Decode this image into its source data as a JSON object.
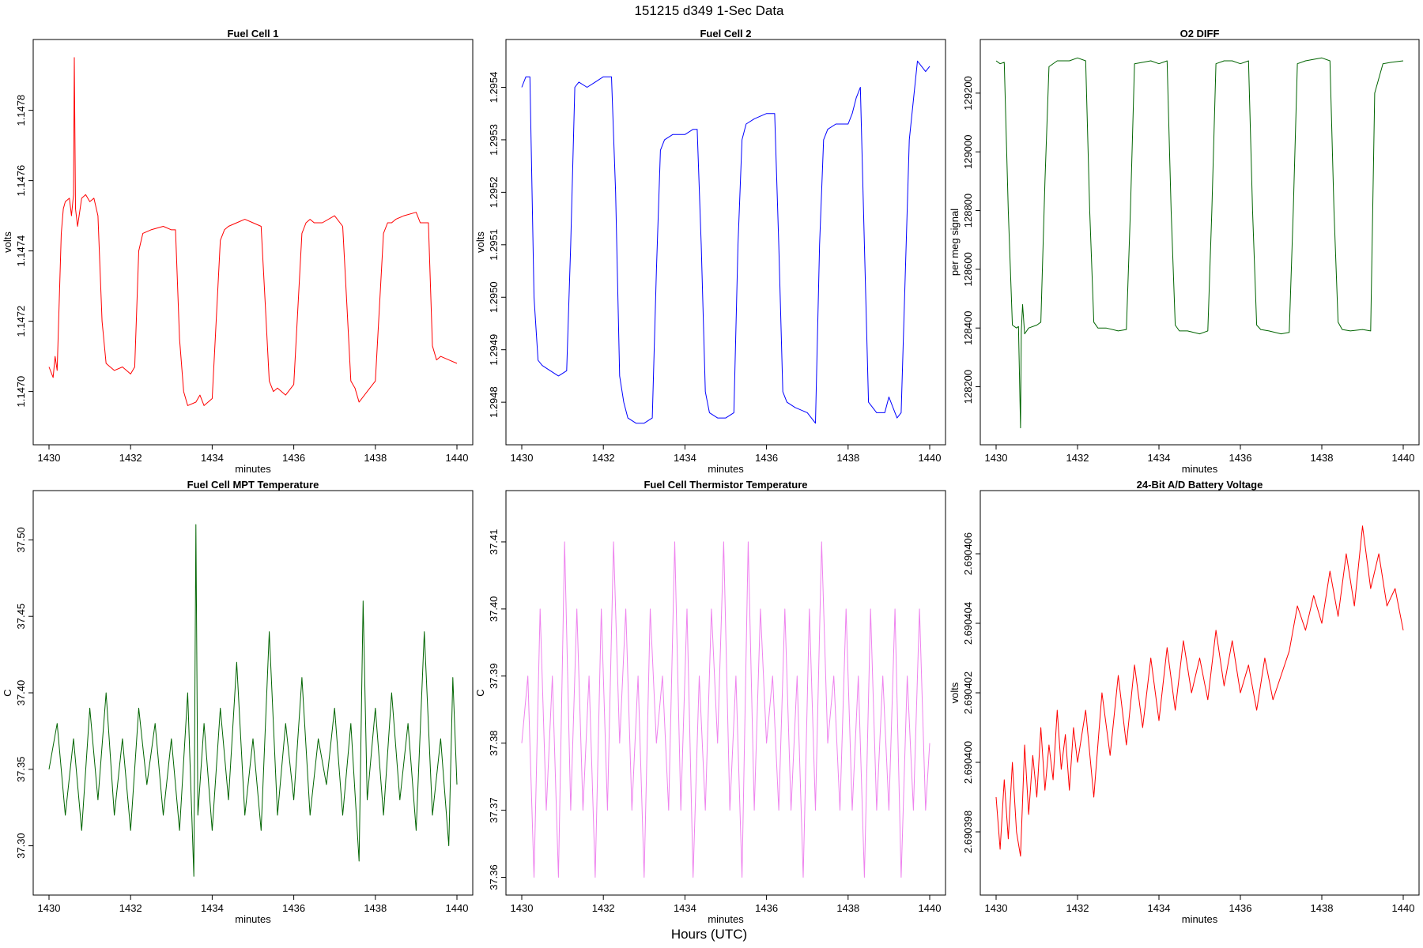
{
  "figure": {
    "title": "151215   d349   1-Sec Data",
    "footer": "Hours (UTC)"
  },
  "chart_data": [
    {
      "type": "line",
      "title": "Fuel Cell 1",
      "xlabel": "minutes",
      "ylabel": "volts",
      "color": "#ff0000",
      "xlim": [
        1430,
        1440
      ],
      "ylim": [
        1.14688,
        1.14797
      ],
      "xticks": [
        "1430",
        "1432",
        "1434",
        "1436",
        "1438",
        "1440"
      ],
      "yticks": [
        "1.1470",
        "1.1472",
        "1.1474",
        "1.1476",
        "1.1478"
      ],
      "series": [
        {
          "x": [
            1430.0,
            1430.1,
            1430.15,
            1430.2,
            1430.3,
            1430.35,
            1430.4,
            1430.5,
            1430.55,
            1430.6,
            1430.62,
            1430.65,
            1430.7,
            1430.8,
            1430.9,
            1431.0,
            1431.1,
            1431.2,
            1431.3,
            1431.4,
            1431.5,
            1431.6,
            1431.8,
            1432.0,
            1432.1,
            1432.2,
            1432.3,
            1432.5,
            1432.8,
            1433.0,
            1433.1,
            1433.2,
            1433.3,
            1433.4,
            1433.6,
            1433.7,
            1433.8,
            1434.0,
            1434.2,
            1434.3,
            1434.4,
            1434.6,
            1434.8,
            1435.0,
            1435.2,
            1435.3,
            1435.4,
            1435.5,
            1435.6,
            1435.8,
            1436.0,
            1436.2,
            1436.3,
            1436.4,
            1436.5,
            1436.7,
            1437.0,
            1437.2,
            1437.3,
            1437.4,
            1437.5,
            1437.6,
            1437.8,
            1438.0,
            1438.2,
            1438.3,
            1438.4,
            1438.5,
            1438.7,
            1439.0,
            1439.1,
            1439.3,
            1439.4,
            1439.5,
            1439.6,
            1439.8,
            1440.0
          ],
          "y": [
            1.14707,
            1.14704,
            1.1471,
            1.14706,
            1.14745,
            1.14752,
            1.14754,
            1.14755,
            1.1475,
            1.14756,
            1.14795,
            1.14752,
            1.14747,
            1.14755,
            1.14756,
            1.14754,
            1.14755,
            1.1475,
            1.1472,
            1.14708,
            1.14707,
            1.14706,
            1.14707,
            1.14705,
            1.14707,
            1.1474,
            1.14745,
            1.14746,
            1.14747,
            1.14746,
            1.14746,
            1.14715,
            1.147,
            1.14696,
            1.14697,
            1.14699,
            1.14696,
            1.14698,
            1.14743,
            1.14746,
            1.14747,
            1.14748,
            1.14749,
            1.14748,
            1.14747,
            1.14725,
            1.14703,
            1.147,
            1.14701,
            1.14699,
            1.14702,
            1.14745,
            1.14748,
            1.14749,
            1.14748,
            1.14748,
            1.1475,
            1.14747,
            1.14725,
            1.14703,
            1.14701,
            1.14697,
            1.147,
            1.14703,
            1.14745,
            1.14748,
            1.14748,
            1.14749,
            1.1475,
            1.14751,
            1.14748,
            1.14748,
            1.14713,
            1.14709,
            1.1471,
            1.14709,
            1.14708
          ]
        }
      ]
    },
    {
      "type": "line",
      "title": "Fuel Cell 2",
      "xlabel": "minutes",
      "ylabel": "volts",
      "color": "#0000ff",
      "xlim": [
        1430,
        1440
      ],
      "ylim": [
        1.29474,
        1.29547
      ],
      "xticks": [
        "1430",
        "1432",
        "1434",
        "1436",
        "1438",
        "1440"
      ],
      "yticks": [
        "1.2948",
        "1.2949",
        "1.2950",
        "1.2951",
        "1.2952",
        "1.2953",
        "1.2954"
      ],
      "series": [
        {
          "x": [
            1430.0,
            1430.1,
            1430.2,
            1430.3,
            1430.4,
            1430.5,
            1430.7,
            1430.9,
            1431.1,
            1431.2,
            1431.3,
            1431.4,
            1431.6,
            1431.8,
            1432.0,
            1432.2,
            1432.3,
            1432.4,
            1432.5,
            1432.6,
            1432.8,
            1433.0,
            1433.2,
            1433.3,
            1433.4,
            1433.5,
            1433.7,
            1434.0,
            1434.2,
            1434.3,
            1434.4,
            1434.5,
            1434.6,
            1434.8,
            1435.0,
            1435.2,
            1435.3,
            1435.4,
            1435.5,
            1435.7,
            1436.0,
            1436.2,
            1436.3,
            1436.4,
            1436.5,
            1436.7,
            1437.0,
            1437.2,
            1437.3,
            1437.4,
            1437.5,
            1437.7,
            1438.0,
            1438.1,
            1438.2,
            1438.3,
            1438.4,
            1438.5,
            1438.7,
            1438.9,
            1439.0,
            1439.2,
            1439.3,
            1439.5,
            1439.7,
            1439.9,
            1440.0
          ],
          "y": [
            1.2954,
            1.29542,
            1.29542,
            1.295,
            1.29488,
            1.29487,
            1.29486,
            1.29485,
            1.29486,
            1.2951,
            1.2954,
            1.29541,
            1.2954,
            1.29541,
            1.29542,
            1.29542,
            1.2952,
            1.29485,
            1.2948,
            1.29477,
            1.29476,
            1.29476,
            1.29477,
            1.29505,
            1.29528,
            1.2953,
            1.29531,
            1.29531,
            1.29532,
            1.29532,
            1.2951,
            1.29482,
            1.29478,
            1.29477,
            1.29477,
            1.29478,
            1.2951,
            1.2953,
            1.29533,
            1.29534,
            1.29535,
            1.29535,
            1.2951,
            1.29482,
            1.2948,
            1.29479,
            1.29478,
            1.29476,
            1.2951,
            1.2953,
            1.29532,
            1.29533,
            1.29533,
            1.29535,
            1.29538,
            1.2954,
            1.2951,
            1.2948,
            1.29478,
            1.29478,
            1.29481,
            1.29477,
            1.29478,
            1.2953,
            1.29545,
            1.29543,
            1.29544
          ]
        }
      ]
    },
    {
      "type": "line",
      "title": "O2 DIFF",
      "xlabel": "minutes",
      "ylabel": "per meg signal",
      "color": "#006400",
      "xlim": [
        1430,
        1440
      ],
      "ylim": [
        128040,
        129345
      ],
      "xticks": [
        "1430",
        "1432",
        "1434",
        "1436",
        "1438",
        "1440"
      ],
      "yticks": [
        "128200",
        "128400",
        "128600",
        "128800",
        "129000",
        "129200"
      ],
      "series": [
        {
          "x": [
            1430.0,
            1430.1,
            1430.2,
            1430.3,
            1430.4,
            1430.5,
            1430.55,
            1430.6,
            1430.62,
            1430.65,
            1430.7,
            1430.8,
            1431.0,
            1431.1,
            1431.2,
            1431.3,
            1431.5,
            1431.8,
            1432.0,
            1432.2,
            1432.3,
            1432.4,
            1432.5,
            1432.7,
            1433.0,
            1433.2,
            1433.3,
            1433.4,
            1433.6,
            1433.8,
            1434.0,
            1434.2,
            1434.3,
            1434.4,
            1434.5,
            1434.7,
            1435.0,
            1435.2,
            1435.3,
            1435.4,
            1435.6,
            1435.8,
            1436.0,
            1436.2,
            1436.3,
            1436.4,
            1436.5,
            1436.7,
            1437.0,
            1437.2,
            1437.3,
            1437.4,
            1437.6,
            1437.8,
            1438.0,
            1438.2,
            1438.3,
            1438.4,
            1438.5,
            1438.7,
            1439.0,
            1439.2,
            1439.3,
            1439.5,
            1439.7,
            1440.0
          ],
          "y": [
            129310,
            129300,
            129305,
            128800,
            128410,
            128400,
            128405,
            128060,
            128390,
            128480,
            128380,
            128400,
            128410,
            128420,
            128900,
            129290,
            129310,
            129310,
            129320,
            129310,
            128800,
            128420,
            128400,
            128400,
            128390,
            128395,
            128800,
            129300,
            129305,
            129310,
            129300,
            129310,
            128800,
            128410,
            128390,
            128390,
            128380,
            128390,
            128800,
            129300,
            129310,
            129310,
            129300,
            129310,
            128800,
            128410,
            128395,
            128390,
            128380,
            128385,
            128800,
            129300,
            129310,
            129315,
            129320,
            129310,
            128800,
            128420,
            128395,
            128390,
            128395,
            128390,
            129200,
            129300,
            129305,
            129310
          ]
        }
      ]
    },
    {
      "type": "line",
      "title": "Fuel Cell MPT Temperature",
      "xlabel": "minutes",
      "ylabel": "C",
      "color": "#006400",
      "xlim": [
        1430,
        1440
      ],
      "ylim": [
        37.275,
        37.525
      ],
      "xticks": [
        "1430",
        "1432",
        "1434",
        "1436",
        "1438",
        "1440"
      ],
      "yticks": [
        "37.30",
        "37.35",
        "37.40",
        "37.45",
        "37.50"
      ],
      "series": [
        {
          "x": [
            1430.0,
            1430.2,
            1430.4,
            1430.6,
            1430.8,
            1431.0,
            1431.2,
            1431.4,
            1431.6,
            1431.8,
            1432.0,
            1432.2,
            1432.4,
            1432.6,
            1432.8,
            1433.0,
            1433.2,
            1433.4,
            1433.55,
            1433.6,
            1433.65,
            1433.8,
            1434.0,
            1434.2,
            1434.4,
            1434.6,
            1434.8,
            1435.0,
            1435.2,
            1435.4,
            1435.6,
            1435.8,
            1436.0,
            1436.2,
            1436.4,
            1436.6,
            1436.8,
            1437.0,
            1437.2,
            1437.4,
            1437.6,
            1437.7,
            1437.8,
            1438.0,
            1438.2,
            1438.4,
            1438.6,
            1438.8,
            1439.0,
            1439.2,
            1439.4,
            1439.6,
            1439.8,
            1439.9,
            1440.0
          ],
          "y": [
            37.35,
            37.38,
            37.32,
            37.37,
            37.31,
            37.39,
            37.33,
            37.4,
            37.32,
            37.37,
            37.31,
            37.39,
            37.34,
            37.38,
            37.32,
            37.37,
            37.31,
            37.4,
            37.28,
            37.51,
            37.32,
            37.38,
            37.31,
            37.39,
            37.33,
            37.42,
            37.32,
            37.37,
            37.31,
            37.44,
            37.32,
            37.38,
            37.33,
            37.41,
            37.32,
            37.37,
            37.34,
            37.39,
            37.32,
            37.38,
            37.29,
            37.46,
            37.33,
            37.39,
            37.32,
            37.4,
            37.33,
            37.38,
            37.31,
            37.44,
            37.32,
            37.37,
            37.3,
            37.41,
            37.34
          ]
        }
      ]
    },
    {
      "type": "line",
      "title": "Fuel Cell Thermistor Temperature",
      "xlabel": "minutes",
      "ylabel": "C",
      "color": "#ee82ee",
      "xlim": [
        1430,
        1440
      ],
      "ylim": [
        37.359,
        37.416
      ],
      "xticks": [
        "1430",
        "1432",
        "1434",
        "1436",
        "1438",
        "1440"
      ],
      "yticks": [
        "37.36",
        "37.37",
        "37.38",
        "37.39",
        "37.40",
        "37.41"
      ],
      "series": [
        {
          "x": [
            1430.0,
            1430.15,
            1430.3,
            1430.45,
            1430.6,
            1430.75,
            1430.9,
            1431.05,
            1431.2,
            1431.35,
            1431.5,
            1431.65,
            1431.8,
            1431.95,
            1432.1,
            1432.25,
            1432.4,
            1432.55,
            1432.7,
            1432.85,
            1433.0,
            1433.15,
            1433.3,
            1433.45,
            1433.6,
            1433.75,
            1433.9,
            1434.05,
            1434.2,
            1434.35,
            1434.5,
            1434.65,
            1434.8,
            1434.95,
            1435.1,
            1435.25,
            1435.4,
            1435.55,
            1435.7,
            1435.85,
            1436.0,
            1436.15,
            1436.3,
            1436.45,
            1436.6,
            1436.75,
            1436.9,
            1437.05,
            1437.2,
            1437.35,
            1437.5,
            1437.65,
            1437.8,
            1437.95,
            1438.1,
            1438.25,
            1438.4,
            1438.55,
            1438.7,
            1438.85,
            1439.0,
            1439.15,
            1439.3,
            1439.45,
            1439.6,
            1439.75,
            1439.9,
            1440.0
          ],
          "y": [
            37.38,
            37.39,
            37.36,
            37.4,
            37.37,
            37.39,
            37.36,
            37.41,
            37.37,
            37.4,
            37.37,
            37.39,
            37.36,
            37.4,
            37.37,
            37.41,
            37.38,
            37.4,
            37.37,
            37.39,
            37.36,
            37.4,
            37.38,
            37.39,
            37.37,
            37.41,
            37.37,
            37.4,
            37.36,
            37.39,
            37.37,
            37.4,
            37.38,
            37.41,
            37.37,
            37.39,
            37.36,
            37.41,
            37.37,
            37.4,
            37.38,
            37.39,
            37.37,
            37.4,
            37.37,
            37.39,
            37.36,
            37.4,
            37.37,
            37.41,
            37.38,
            37.39,
            37.37,
            37.4,
            37.37,
            37.39,
            37.36,
            37.4,
            37.37,
            37.39,
            37.37,
            37.4,
            37.36,
            37.39,
            37.37,
            37.4,
            37.37,
            37.38
          ]
        }
      ]
    },
    {
      "type": "line",
      "title": "24-Bit A/D Battery Voltage",
      "xlabel": "minutes",
      "ylabel": "volts",
      "color": "#ff0000",
      "xlim": [
        1430,
        1440
      ],
      "ylim": [
        2.6903965,
        2.6904075
      ],
      "xticks": [
        "1430",
        "1432",
        "1434",
        "1436",
        "1438",
        "1440"
      ],
      "yticks": [
        "2.690398",
        "2.690400",
        "2.690402",
        "2.690404",
        "2.690406"
      ],
      "series": [
        {
          "x": [
            1430.0,
            1430.1,
            1430.2,
            1430.3,
            1430.4,
            1430.5,
            1430.6,
            1430.7,
            1430.8,
            1430.9,
            1431.0,
            1431.1,
            1431.2,
            1431.3,
            1431.4,
            1431.5,
            1431.6,
            1431.7,
            1431.8,
            1431.9,
            1432.0,
            1432.2,
            1432.4,
            1432.6,
            1432.8,
            1433.0,
            1433.2,
            1433.4,
            1433.6,
            1433.8,
            1434.0,
            1434.2,
            1434.4,
            1434.6,
            1434.8,
            1435.0,
            1435.2,
            1435.4,
            1435.6,
            1435.8,
            1436.0,
            1436.2,
            1436.4,
            1436.6,
            1436.8,
            1437.0,
            1437.2,
            1437.4,
            1437.6,
            1437.8,
            1438.0,
            1438.2,
            1438.4,
            1438.6,
            1438.8,
            1439.0,
            1439.2,
            1439.4,
            1439.6,
            1439.8,
            1440.0
          ],
          "y": [
            2.690399,
            2.6903975,
            2.6903995,
            2.6903978,
            2.6904,
            2.690398,
            2.6903973,
            2.6904005,
            2.6903985,
            2.6904002,
            2.690399,
            2.690401,
            2.6903992,
            2.6904005,
            2.6903995,
            2.6904015,
            2.6903998,
            2.6904008,
            2.6903992,
            2.690401,
            2.6904,
            2.6904015,
            2.690399,
            2.690402,
            2.6904002,
            2.6904025,
            2.6904005,
            2.6904028,
            2.690401,
            2.690403,
            2.6904012,
            2.6904033,
            2.6904015,
            2.6904035,
            2.690402,
            2.690403,
            2.6904018,
            2.6904038,
            2.6904022,
            2.6904035,
            2.690402,
            2.6904028,
            2.6904015,
            2.690403,
            2.6904018,
            2.6904025,
            2.6904032,
            2.6904045,
            2.6904038,
            2.6904048,
            2.690404,
            2.6904055,
            2.6904042,
            2.690406,
            2.6904045,
            2.6904068,
            2.690405,
            2.690406,
            2.6904045,
            2.690405,
            2.6904038
          ]
        }
      ]
    }
  ]
}
